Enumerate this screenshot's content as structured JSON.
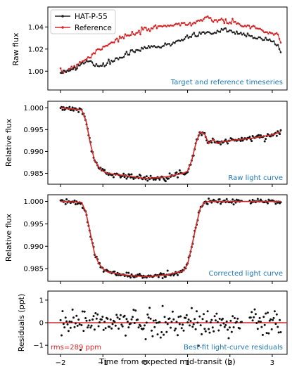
{
  "colors": {
    "target": "#222222",
    "reference": "#d62728",
    "annotation": "#1f77b4",
    "rms": "#d62728",
    "model": "#d62728"
  },
  "chart_data": [
    {
      "type": "line",
      "panel": "timeseries",
      "ylabel": "Raw flux",
      "annotation": "Target and reference timeseries",
      "xlim": [
        -2.3,
        3.35
      ],
      "ylim": [
        0.983,
        1.058
      ],
      "yticks": [
        1.0,
        1.02,
        1.04
      ],
      "ytick_labels": [
        "1.00",
        "1.02",
        "1.04"
      ],
      "legend_position": "upper-left",
      "series": [
        {
          "name": "HAT-P-55",
          "x": [
            -2.0,
            -1.7,
            -1.5,
            -1.3,
            -1.2,
            -1.0,
            -0.8,
            -0.6,
            -0.4,
            -0.2,
            0.0,
            0.2,
            0.4,
            0.6,
            0.8,
            1.0,
            1.2,
            1.4,
            1.6,
            1.8,
            2.0,
            2.2,
            2.4,
            2.6,
            2.8,
            3.0,
            3.2
          ],
          "values": [
            0.998,
            1.002,
            1.007,
            1.01,
            1.004,
            1.005,
            1.009,
            1.012,
            1.016,
            1.018,
            1.021,
            1.022,
            1.022,
            1.025,
            1.028,
            1.031,
            1.033,
            1.035,
            1.034,
            1.038,
            1.036,
            1.034,
            1.034,
            1.031,
            1.029,
            1.027,
            1.019
          ]
        },
        {
          "name": "Reference",
          "x": [
            -2.0,
            -1.7,
            -1.5,
            -1.3,
            -1.1,
            -0.9,
            -0.7,
            -0.5,
            -0.3,
            -0.1,
            0.1,
            0.3,
            0.5,
            0.7,
            0.9,
            1.1,
            1.3,
            1.5,
            1.7,
            1.9,
            2.1,
            2.3,
            2.5,
            2.7,
            2.9,
            3.1,
            3.2
          ],
          "values": [
            0.998,
            1.004,
            1.009,
            1.013,
            1.02,
            1.024,
            1.028,
            1.031,
            1.033,
            1.036,
            1.038,
            1.04,
            1.042,
            1.042,
            1.043,
            1.043,
            1.046,
            1.047,
            1.046,
            1.045,
            1.043,
            1.042,
            1.04,
            1.038,
            1.035,
            1.033,
            1.025
          ]
        }
      ]
    },
    {
      "type": "scatter",
      "panel": "raw",
      "ylabel": "Relative flux",
      "annotation": "Raw light curve",
      "xlim": [
        -2.3,
        3.35
      ],
      "ylim": [
        0.9825,
        1.0015
      ],
      "yticks": [
        0.985,
        0.99,
        0.995,
        1.0
      ],
      "ytick_labels": [
        "0.985",
        "0.990",
        "0.995",
        "1.000"
      ],
      "model": {
        "x": [
          -2.0,
          -1.5,
          -1.4,
          -1.3,
          -1.2,
          -1.1,
          -1.0,
          -0.9,
          -0.5,
          0.0,
          0.5,
          0.9,
          1.0,
          1.1,
          1.2,
          1.3,
          1.4,
          1.5,
          1.6,
          1.7,
          1.8,
          2.0,
          2.5,
          3.0,
          3.2
        ],
        "values": [
          1.0,
          0.9995,
          0.997,
          0.992,
          0.988,
          0.9865,
          0.9855,
          0.985,
          0.9845,
          0.9838,
          0.9842,
          0.985,
          0.9855,
          0.988,
          0.992,
          0.9945,
          0.994,
          0.9918,
          0.9928,
          0.9918,
          0.9922,
          0.9925,
          0.993,
          0.9938,
          0.9945
        ]
      }
    },
    {
      "type": "scatter",
      "panel": "corrected",
      "ylabel": "Relative flux",
      "annotation": "Corrected light curve",
      "xlim": [
        -2.3,
        3.35
      ],
      "ylim": [
        0.9822,
        1.0015
      ],
      "yticks": [
        0.985,
        0.99,
        0.995,
        1.0
      ],
      "ytick_labels": [
        "0.985",
        "0.990",
        "0.995",
        "1.000"
      ],
      "model": {
        "x": [
          -2.0,
          -1.5,
          -1.4,
          -1.3,
          -1.2,
          -1.1,
          -1.0,
          -0.9,
          -0.5,
          0.0,
          0.5,
          0.9,
          1.0,
          1.1,
          1.2,
          1.3,
          1.4,
          1.5,
          2.0,
          2.5,
          3.2
        ],
        "values": [
          1.0,
          0.9998,
          0.9975,
          0.993,
          0.9885,
          0.9862,
          0.985,
          0.9843,
          0.9836,
          0.9832,
          0.9836,
          0.9845,
          0.986,
          0.99,
          0.9945,
          0.9985,
          0.9998,
          1.0,
          1.0,
          1.0,
          1.0
        ]
      }
    },
    {
      "type": "scatter",
      "panel": "residuals",
      "ylabel": "Residuals (ppt)",
      "xlabel": "Time from expected mid-transit (h)",
      "annotation": "Best-fit light-curve residuals",
      "rms_label": "rms=289 ppm",
      "xlim": [
        -2.3,
        3.35
      ],
      "ylim": [
        -1.4,
        1.4
      ],
      "yticks": [
        -1,
        0,
        1
      ],
      "ytick_labels": [
        "−1",
        "0",
        "1"
      ],
      "xticks": [
        -2,
        -1,
        0,
        1,
        2,
        3
      ],
      "xtick_labels": [
        "−2",
        "−1",
        "0",
        "1",
        "2",
        "3"
      ],
      "rms_ppm": 289
    }
  ]
}
